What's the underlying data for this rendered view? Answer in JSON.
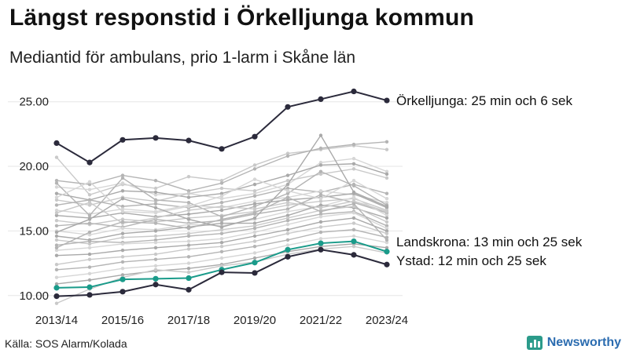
{
  "header": {
    "title": "Längst responstid i Örkelljunga kommun",
    "subtitle": "Mediantid för ambulans, prio 1-larm i Skåne län"
  },
  "footer": {
    "source": "Källa: SOS Alarm/Kolada",
    "brand": "Newsworthy"
  },
  "colors": {
    "highlight_dark": "#2b2a3b",
    "highlight_teal": "#1a9b8a",
    "background_lines": [
      "#c9c9c9",
      "#b4b4b4",
      "#d6d6d6",
      "#a9a9a9"
    ],
    "brand": "#2b6cb0"
  },
  "chart_data": {
    "type": "line",
    "x": [
      "2013/14",
      "2014/15",
      "2015/16",
      "2016/17",
      "2017/18",
      "2018/19",
      "2019/20",
      "2020/21",
      "2021/22",
      "2022/23",
      "2023/24"
    ],
    "x_tick_labels": [
      "2013/14",
      "2015/16",
      "2017/18",
      "2019/20",
      "2021/22",
      "2023/24"
    ],
    "y_tick_labels": [
      "10.00",
      "15.00",
      "20.00",
      "25.00"
    ],
    "ylim": [
      9.5,
      26.5
    ],
    "grid": "horizontal",
    "highlighted_series": [
      {
        "name": "Örkelljunga",
        "label": "Örkelljunga: 25 min och 6 sek",
        "color": "#2b2a3b",
        "values": [
          21.8,
          20.3,
          22.05,
          22.2,
          22.0,
          21.35,
          22.3,
          24.6,
          25.2,
          25.8,
          25.1
        ]
      },
      {
        "name": "Landskrona",
        "label": "Landskrona: 13 min och 25 sek",
        "color": "#1a9b8a",
        "values": [
          10.6,
          10.65,
          11.25,
          11.3,
          11.35,
          12.0,
          12.55,
          13.55,
          14.05,
          14.2,
          13.4
        ]
      },
      {
        "name": "Ystad",
        "label": "Ystad: 12 min och 25 sek",
        "color": "#2b2a3b",
        "values": [
          9.95,
          10.05,
          10.3,
          10.85,
          10.45,
          11.8,
          11.75,
          13.0,
          13.55,
          13.15,
          12.4
        ]
      }
    ],
    "background_series": [
      [
        20.7,
        17.8,
        18.6,
        18.3,
        19.2,
        18.9,
        20.1,
        21.0,
        21.3,
        21.6,
        21.3
      ],
      [
        18.9,
        18.6,
        19.3,
        18.9,
        18.1,
        18.7,
        19.8,
        20.8,
        21.4,
        21.7,
        21.9
      ],
      [
        18.4,
        18.2,
        18.7,
        17.8,
        17.9,
        17.5,
        17.9,
        18.6,
        20.3,
        20.6,
        19.6
      ],
      [
        17.9,
        17.4,
        18.1,
        18.0,
        17.6,
        17.9,
        18.6,
        19.3,
        20.1,
        20.2,
        19.4
      ],
      [
        17.4,
        17.0,
        17.6,
        17.3,
        17.9,
        18.3,
        18.1,
        18.9,
        19.4,
        19.8,
        19.1
      ],
      [
        17.0,
        17.4,
        16.9,
        17.1,
        16.8,
        17.2,
        17.7,
        18.3,
        18.0,
        18.6,
        17.9
      ],
      [
        16.6,
        16.3,
        16.7,
        16.5,
        17.0,
        16.8,
        17.3,
        17.6,
        18.1,
        17.8,
        17.2
      ],
      [
        16.2,
        16.0,
        16.4,
        16.1,
        16.3,
        16.6,
        17.1,
        17.4,
        17.6,
        17.9,
        16.8
      ],
      [
        15.8,
        15.5,
        15.9,
        15.7,
        16.0,
        16.2,
        16.5,
        17.0,
        17.3,
        17.5,
        16.6
      ],
      [
        15.4,
        15.6,
        15.3,
        15.9,
        15.6,
        15.8,
        16.3,
        16.7,
        17.8,
        17.2,
        16.4
      ],
      [
        15.0,
        14.7,
        15.2,
        15.1,
        15.5,
        15.4,
        15.9,
        16.5,
        16.9,
        17.6,
        16.2
      ],
      [
        14.6,
        14.3,
        14.8,
        15.0,
        15.3,
        15.6,
        15.6,
        16.2,
        17.0,
        16.8,
        16.0
      ],
      [
        14.3,
        14.0,
        14.5,
        14.6,
        14.8,
        15.1,
        15.4,
        16.0,
        16.6,
        16.9,
        15.7
      ],
      [
        13.9,
        14.2,
        14.1,
        14.3,
        14.6,
        14.8,
        15.2,
        15.8,
        16.3,
        16.5,
        15.4
      ],
      [
        13.5,
        13.7,
        14.0,
        14.1,
        14.2,
        14.4,
        14.9,
        15.5,
        16.1,
        16.4,
        15.2
      ],
      [
        13.1,
        13.2,
        13.5,
        13.7,
        13.9,
        14.1,
        14.6,
        15.1,
        15.7,
        16.0,
        15.0
      ],
      [
        12.4,
        12.8,
        13.0,
        13.2,
        13.6,
        13.8,
        14.2,
        14.8,
        15.3,
        15.6,
        14.8
      ],
      [
        12.0,
        12.2,
        12.6,
        12.8,
        13.0,
        13.4,
        13.8,
        14.3,
        14.9,
        15.1,
        14.5
      ],
      [
        11.4,
        11.7,
        12.1,
        12.3,
        12.5,
        12.9,
        13.3,
        13.9,
        14.4,
        14.6,
        14.1
      ],
      [
        10.9,
        11.2,
        11.6,
        11.9,
        12.1,
        12.4,
        12.9,
        13.4,
        13.8,
        14.0,
        13.7
      ],
      [
        9.4,
        10.5,
        11.4,
        12.0,
        11.8,
        12.3,
        12.6,
        13.2,
        13.6,
        13.8,
        13.3
      ],
      [
        18.7,
        16.2,
        19.1,
        17.4,
        17.2,
        16.1,
        16.9,
        17.9,
        19.6,
        18.5,
        17.0
      ],
      [
        17.6,
        18.8,
        16.5,
        16.4,
        16.9,
        17.7,
        19.0,
        18.1,
        17.5,
        18.9,
        17.5
      ],
      [
        14.9,
        15.9,
        17.5,
        16.8,
        15.9,
        15.3,
        16.0,
        18.6,
        22.4,
        18.0,
        16.9
      ],
      [
        16.4,
        17.2,
        15.6,
        16.0,
        16.6,
        16.9,
        16.7,
        17.2,
        16.8,
        17.3,
        16.5
      ],
      [
        13.7,
        14.9,
        15.7,
        15.6,
        15.2,
        15.9,
        16.4,
        17.6,
        16.5,
        17.1,
        14.3
      ]
    ]
  }
}
